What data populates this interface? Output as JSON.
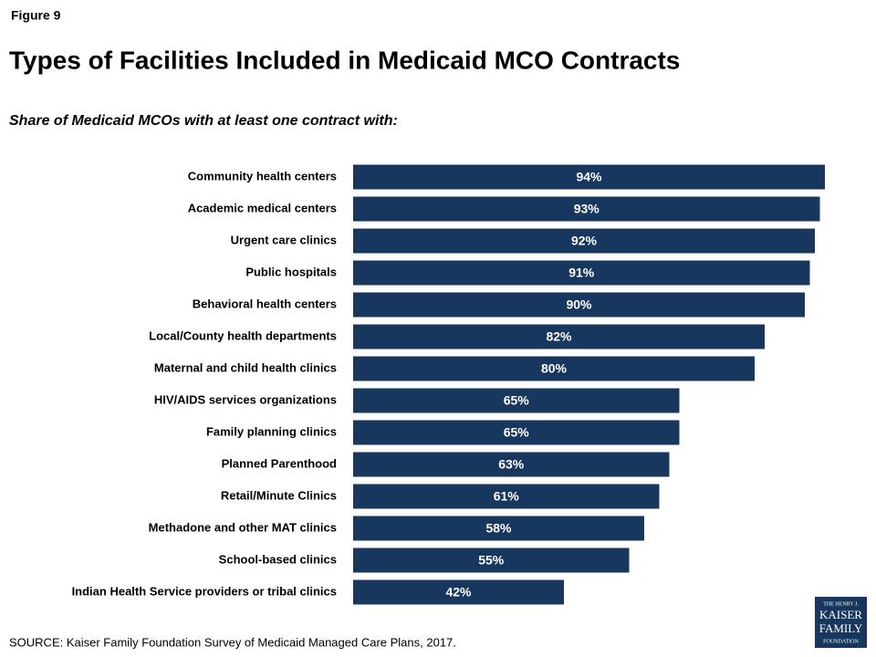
{
  "chart_data": {
    "type": "bar",
    "orientation": "horizontal",
    "figure_label": "Figure 9",
    "title": "Types of Facilities Included in Medicaid MCO Contracts",
    "subtitle": "Share of Medicaid MCOs with at least one contract with:",
    "categories": [
      "Community health centers",
      "Academic medical centers",
      "Urgent care clinics",
      "Public hospitals",
      "Behavioral health centers",
      "Local/County health departments",
      "Maternal and child health clinics",
      "HIV/AIDS services organizations",
      "Family planning clinics",
      "Planned Parenthood",
      "Retail/Minute Clinics",
      "Methadone and other MAT clinics",
      "School-based clinics",
      "Indian Health Service providers or tribal clinics"
    ],
    "values": [
      94,
      93,
      92,
      91,
      90,
      82,
      80,
      65,
      65,
      63,
      61,
      58,
      55,
      42
    ],
    "value_labels": [
      "94%",
      "93%",
      "92%",
      "91%",
      "90%",
      "82%",
      "80%",
      "65%",
      "65%",
      "63%",
      "61%",
      "58%",
      "55%",
      "42%"
    ],
    "color": "#17375e",
    "xlim": [
      0,
      100
    ],
    "source": "SOURCE: Kaiser Family Foundation Survey of Medicaid Managed Care Plans, 2017.",
    "logo": [
      "THE HENRY J.",
      "KAISER",
      "FAMILY",
      "FOUNDATION"
    ]
  }
}
